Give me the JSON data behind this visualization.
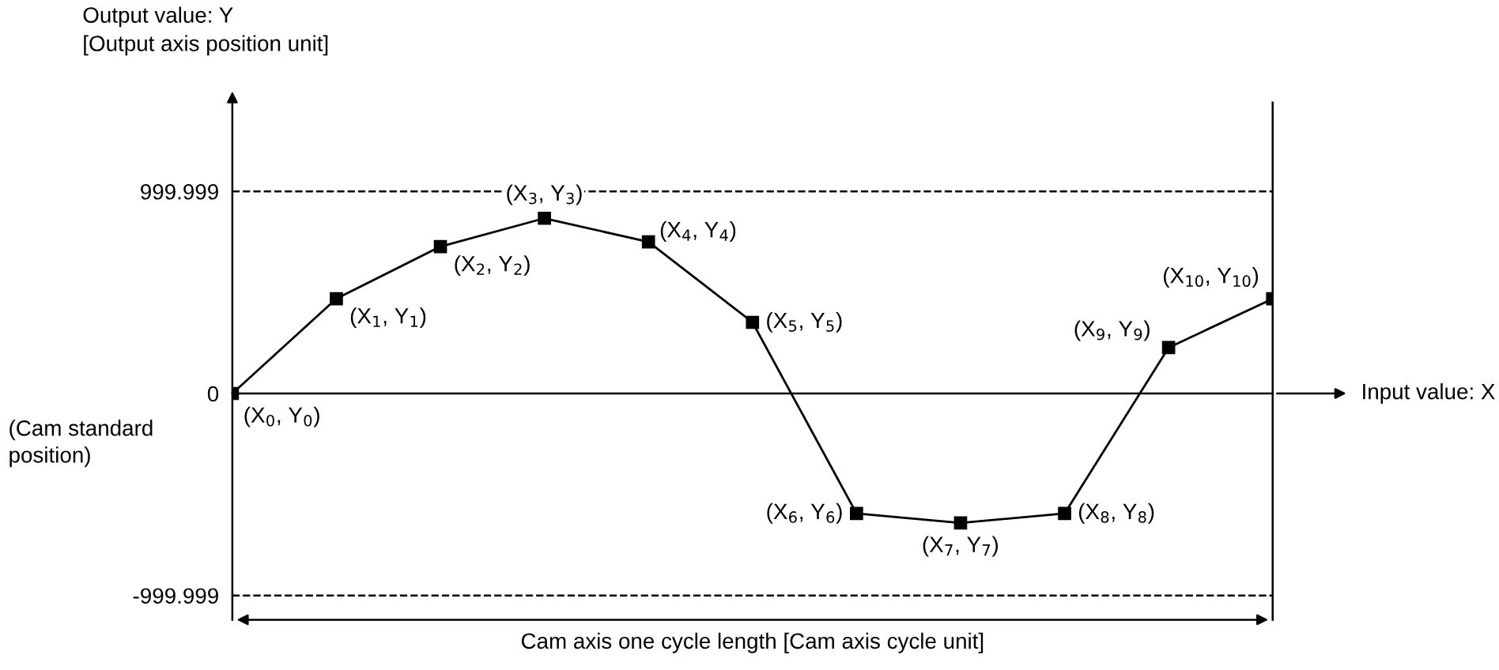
{
  "chart_data": {
    "type": "line",
    "xlabel": "Input value: X",
    "ylabel": "Output value: Y\n[Output axis position unit]",
    "categories": [
      null,
      null,
      null,
      null,
      null,
      null,
      null,
      null,
      null,
      null,
      null
    ],
    "series": [
      {
        "color": "#000000",
        "values": [
          0,
          469,
          727,
          867,
          750,
          352,
          -594,
          -641,
          -594,
          227,
          469
        ],
        "value_labels": [
          "(X$_{0}$, Y$_{0}$)",
          "(X$_{1}$, Y$_{1}$)",
          "(X$_{2}$, Y$_{2}$)",
          "(X$_{3}$, Y$_{3}$)",
          "(X$_{4}$, Y$_{4}$)",
          "(X$_{5}$, Y$_{5}$)",
          "(X$_{6}$, Y$_{6}$)",
          "(X$_{7}$, Y$_{7}$)",
          "(X$_{8}$, Y$_{8}$)",
          "(X$_{9}$, Y$_{9}$)",
          "(X$_{10}$, Y$_{10}$)"
        ]
      }
    ],
    "marker": "square",
    "line_style": "solid",
    "grid": false,
    "legend": false,
    "ylim": [
      -1120,
      1440
    ],
    "yticks": [
      -999.999,
      0,
      999.999
    ],
    "ref_lines": [
      {
        "axis": "y",
        "value": 999.999,
        "color": "#000000",
        "line_style": "dashed"
      },
      {
        "axis": "y",
        "value": -999.999,
        "color": "#000000",
        "line_style": "dashed"
      }
    ],
    "annotations": [
      "(Cam standard\nposition)",
      "Cam axis one cycle length [Cam axis cycle unit]"
    ]
  }
}
